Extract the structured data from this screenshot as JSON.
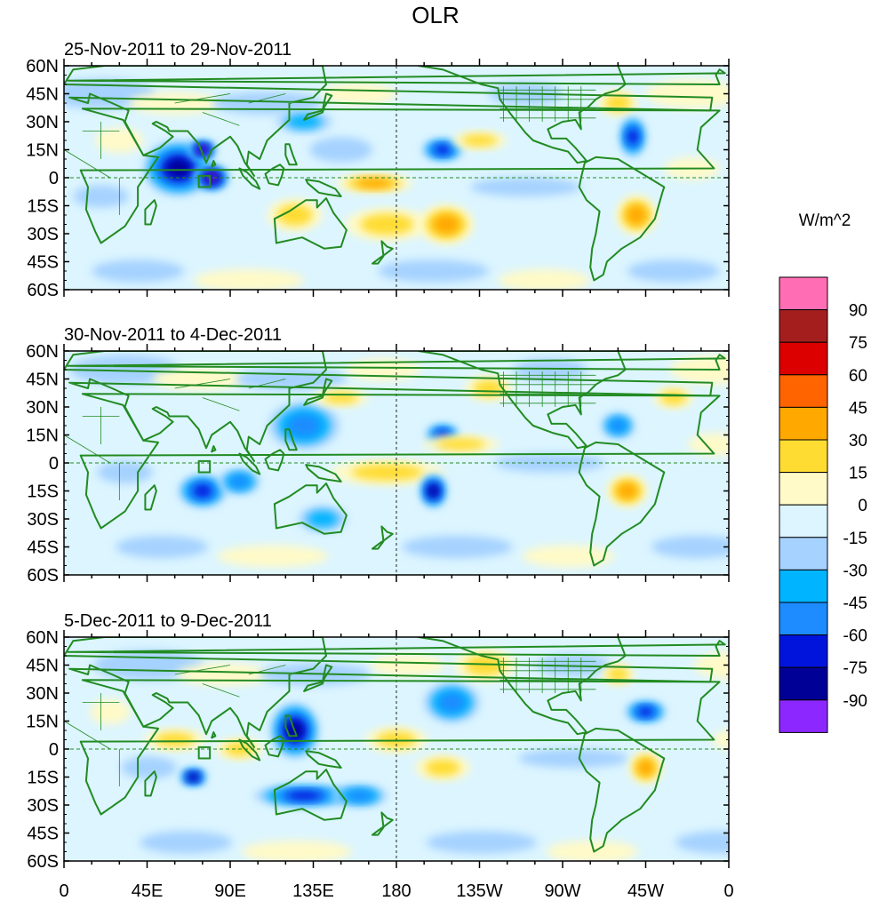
{
  "title": "OLR",
  "chart_data": [
    {
      "type": "heatmap",
      "kind": "filled contour map (OLR anomaly)",
      "period_label": "25-Nov-2011 to 29-Nov-2011",
      "lon_range": [
        0,
        360
      ],
      "lat_range": [
        -60,
        60
      ],
      "features": [
        {
          "lon": 62,
          "lat": 5,
          "rx": 18,
          "ry": 14,
          "value": -75
        },
        {
          "lon": 75,
          "lat": 15,
          "rx": 6,
          "ry": 4,
          "value": -90
        },
        {
          "lon": 80,
          "lat": 0,
          "rx": 8,
          "ry": 6,
          "value": -90
        },
        {
          "lon": 130,
          "lat": 30,
          "rx": 14,
          "ry": 5,
          "value": -30
        },
        {
          "lon": 150,
          "lat": 15,
          "rx": 16,
          "ry": 6,
          "value": -15
        },
        {
          "lon": 168,
          "lat": -3,
          "rx": 20,
          "ry": 4,
          "value": 45
        },
        {
          "lon": 175,
          "lat": -25,
          "rx": 22,
          "ry": 8,
          "value": 30
        },
        {
          "lon": 207,
          "lat": -25,
          "rx": 14,
          "ry": 10,
          "value": 45
        },
        {
          "lon": 205,
          "lat": 15,
          "rx": 10,
          "ry": 5,
          "value": -60
        },
        {
          "lon": 225,
          "lat": 20,
          "rx": 14,
          "ry": 4,
          "value": 30
        },
        {
          "lon": 300,
          "lat": 40,
          "rx": 10,
          "ry": 6,
          "value": 30
        },
        {
          "lon": 308,
          "lat": 22,
          "rx": 6,
          "ry": 10,
          "value": -60
        },
        {
          "lon": 310,
          "lat": -20,
          "rx": 10,
          "ry": 10,
          "value": 45
        },
        {
          "lon": 30,
          "lat": 20,
          "rx": 12,
          "ry": 6,
          "value": 15
        },
        {
          "lon": 125,
          "lat": -20,
          "rx": 14,
          "ry": 8,
          "value": 30
        }
      ]
    },
    {
      "type": "heatmap",
      "kind": "filled contour map (OLR anomaly)",
      "period_label": "30-Nov-2011 to 4-Dec-2011",
      "lon_range": [
        0,
        360
      ],
      "lat_range": [
        -60,
        60
      ],
      "features": [
        {
          "lon": 75,
          "lat": -15,
          "rx": 12,
          "ry": 8,
          "value": -60
        },
        {
          "lon": 95,
          "lat": -10,
          "rx": 10,
          "ry": 6,
          "value": -45
        },
        {
          "lon": 130,
          "lat": 20,
          "rx": 18,
          "ry": 12,
          "value": -45
        },
        {
          "lon": 175,
          "lat": -5,
          "rx": 30,
          "ry": 6,
          "value": 30
        },
        {
          "lon": 200,
          "lat": -15,
          "rx": 6,
          "ry": 8,
          "value": -75
        },
        {
          "lon": 205,
          "lat": 15,
          "rx": 8,
          "ry": 5,
          "value": -60
        },
        {
          "lon": 215,
          "lat": 10,
          "rx": 20,
          "ry": 4,
          "value": 30
        },
        {
          "lon": 230,
          "lat": 40,
          "rx": 12,
          "ry": 6,
          "value": 30
        },
        {
          "lon": 300,
          "lat": 20,
          "rx": 8,
          "ry": 6,
          "value": -45
        },
        {
          "lon": 305,
          "lat": -15,
          "rx": 10,
          "ry": 8,
          "value": 45
        },
        {
          "lon": 330,
          "lat": 35,
          "rx": 10,
          "ry": 5,
          "value": 30
        },
        {
          "lon": 140,
          "lat": -30,
          "rx": 12,
          "ry": 6,
          "value": -30
        },
        {
          "lon": 150,
          "lat": 35,
          "rx": 14,
          "ry": 4,
          "value": 30
        }
      ]
    },
    {
      "type": "heatmap",
      "kind": "filled contour map (OLR anomaly)",
      "period_label": "5-Dec-2011 to 9-Dec-2011",
      "lon_range": [
        0,
        360
      ],
      "lat_range": [
        -60,
        60
      ],
      "features": [
        {
          "lon": 125,
          "lat": 10,
          "rx": 12,
          "ry": 14,
          "value": -75
        },
        {
          "lon": 130,
          "lat": -25,
          "rx": 26,
          "ry": 5,
          "value": -60
        },
        {
          "lon": 160,
          "lat": -25,
          "rx": 14,
          "ry": 5,
          "value": -45
        },
        {
          "lon": 70,
          "lat": -15,
          "rx": 6,
          "ry": 4,
          "value": -75
        },
        {
          "lon": 60,
          "lat": 5,
          "rx": 16,
          "ry": 5,
          "value": 30
        },
        {
          "lon": 95,
          "lat": 0,
          "rx": 12,
          "ry": 5,
          "value": 30
        },
        {
          "lon": 180,
          "lat": 5,
          "rx": 16,
          "ry": 6,
          "value": 30
        },
        {
          "lon": 205,
          "lat": -10,
          "rx": 14,
          "ry": 6,
          "value": 30
        },
        {
          "lon": 210,
          "lat": 25,
          "rx": 14,
          "ry": 10,
          "value": -45
        },
        {
          "lon": 228,
          "lat": 45,
          "rx": 16,
          "ry": 8,
          "value": 30
        },
        {
          "lon": 315,
          "lat": 20,
          "rx": 10,
          "ry": 5,
          "value": -60
        },
        {
          "lon": 315,
          "lat": -10,
          "rx": 8,
          "ry": 8,
          "value": 45
        },
        {
          "lon": 25,
          "lat": 20,
          "rx": 10,
          "ry": 6,
          "value": 15
        },
        {
          "lon": 300,
          "lat": 40,
          "rx": 8,
          "ry": 5,
          "value": 30
        }
      ]
    }
  ],
  "y_ticks": [
    "60N",
    "45N",
    "30N",
    "15N",
    "0",
    "15S",
    "30S",
    "45S",
    "60S"
  ],
  "x_ticks": [
    "0",
    "45E",
    "90E",
    "135E",
    "180",
    "135W",
    "90W",
    "45W",
    "0"
  ],
  "colorbar": {
    "unit_label": "W/m^2",
    "levels": [
      "90",
      "75",
      "60",
      "45",
      "30",
      "15",
      "0",
      "-15",
      "-30",
      "-45",
      "-60",
      "-75",
      "-90"
    ],
    "colors_top_to_bottom": [
      "#ff6eb4",
      "#a51e1e",
      "#dc0000",
      "#ff6400",
      "#ffa800",
      "#ffdc32",
      "#fffac8",
      "#dcf5ff",
      "#a5d2ff",
      "#00b4ff",
      "#1e8cff",
      "#0014dc",
      "#000096",
      "#8c28ff"
    ]
  },
  "colors": {
    "coast": "#228b22"
  }
}
